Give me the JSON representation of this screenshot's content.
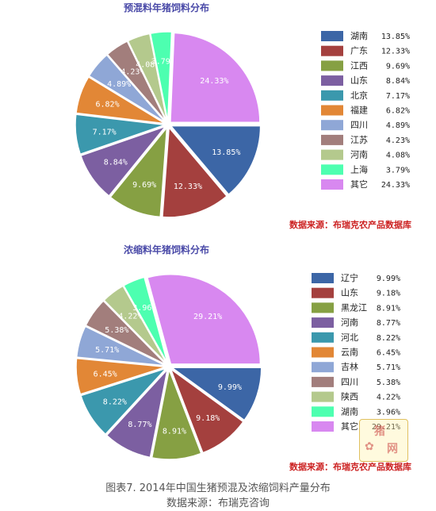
{
  "chart_data": [
    {
      "type": "pie",
      "title": "预混料年猪饲料分布",
      "categories": [
        "湖南",
        "广东",
        "江西",
        "山东",
        "北京",
        "福建",
        "四川",
        "江苏",
        "河南",
        "上海",
        "其它"
      ],
      "labels": [
        "13.85%",
        "12.33%",
        "9.69%",
        "8.84%",
        "7.17%",
        "6.82%",
        "4.89%",
        "4.23%",
        "4.08%",
        "3.79%",
        "24.33%"
      ],
      "values": [
        13.85,
        12.33,
        9.69,
        8.84,
        7.17,
        6.82,
        4.89,
        4.23,
        4.08,
        3.79,
        24.33
      ],
      "colors": [
        "#3c66a6",
        "#a4403e",
        "#86a043",
        "#7c5fa1",
        "#3b98ad",
        "#e28736",
        "#8fa7d6",
        "#a27e7c",
        "#b4c98d",
        "#4dffb0",
        "#d888f0"
      ],
      "source": "数据来源：布瑞克农产品数据库",
      "legend": "right"
    },
    {
      "type": "pie",
      "title": "浓缩料年猪饲料分布",
      "categories": [
        "辽宁",
        "山东",
        "黑龙江",
        "河南",
        "河北",
        "云南",
        "吉林",
        "四川",
        "陕西",
        "湖南",
        "其它"
      ],
      "labels": [
        "9.99%",
        "9.18%",
        "8.91%",
        "8.77%",
        "8.22%",
        "6.45%",
        "5.71%",
        "5.38%",
        "4.22%",
        "3.96%",
        "29.21%"
      ],
      "values": [
        9.99,
        9.18,
        8.91,
        8.77,
        8.22,
        6.45,
        5.71,
        5.38,
        4.22,
        3.96,
        29.21
      ],
      "colors": [
        "#3c66a6",
        "#a4403e",
        "#86a043",
        "#7c5fa1",
        "#3b98ad",
        "#e28736",
        "#8fa7d6",
        "#a27e7c",
        "#b4c98d",
        "#4dffb0",
        "#d888f0"
      ],
      "source": "数据来源：布瑞克农产品数据库",
      "legend": "right"
    }
  ],
  "caption": {
    "line1": "图表7. 2014年中国生猪预混及浓缩饲料产量分布",
    "line2": "数据来源：布瑞克咨询"
  }
}
